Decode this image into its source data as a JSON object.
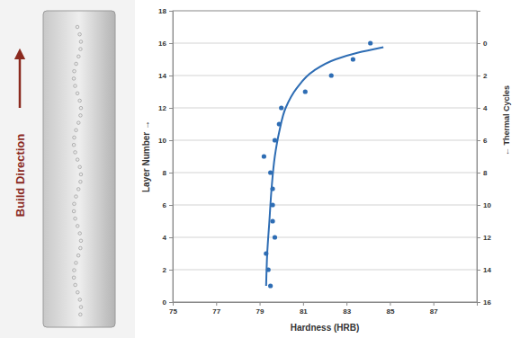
{
  "chart_data": {
    "type": "scatter",
    "xlabel": "Hardness (HRB)",
    "ylabel": "Layer Number →",
    "y2label": "← Thermal Cycles",
    "annotations": [
      "Build Direction"
    ],
    "xlim": [
      75,
      89
    ],
    "xticks": [
      75,
      77,
      79,
      81,
      83,
      85,
      87
    ],
    "ylim": [
      0,
      18
    ],
    "yticks": [
      0,
      2,
      4,
      6,
      8,
      10,
      12,
      14,
      16,
      18
    ],
    "y2lim": [
      16,
      -2
    ],
    "y2ticks": [
      16,
      14,
      12,
      10,
      8,
      6,
      4,
      2,
      0
    ],
    "grid": true,
    "series": [
      {
        "type": "scatter",
        "color": "#2e6db4",
        "marker": "circle",
        "x": [
          79.5,
          79.4,
          79.3,
          79.7,
          79.6,
          79.6,
          79.6,
          79.5,
          79.2,
          79.7,
          79.9,
          80.0,
          81.1,
          82.3,
          83.3,
          84.1
        ],
        "values": [
          1,
          2,
          3,
          4,
          5,
          6,
          7,
          8,
          9,
          10,
          11,
          12,
          13,
          14,
          15,
          16
        ]
      },
      {
        "type": "line",
        "color": "#2e6db4",
        "line_style": "solid",
        "x": [
          79.3,
          79.35,
          79.45,
          79.55,
          79.7,
          79.9,
          80.2,
          80.7,
          81.5,
          82.5,
          83.5,
          84.7
        ],
        "values": [
          1,
          3,
          5,
          7,
          9,
          10.5,
          12,
          13.2,
          14.3,
          15,
          15.4,
          15.75
        ]
      }
    ]
  }
}
